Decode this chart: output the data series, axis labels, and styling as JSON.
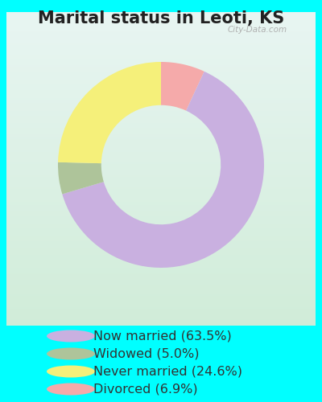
{
  "title": "Marital status in Leoti, KS",
  "slices": [
    63.5,
    5.0,
    24.6,
    6.9
  ],
  "labels": [
    "Now married (63.5%)",
    "Widowed (5.0%)",
    "Never married (24.6%)",
    "Divorced (6.9%)"
  ],
  "colors": [
    "#c9b0e0",
    "#aec49a",
    "#f5f07a",
    "#f5aaaa"
  ],
  "outer_bg": "#00ffff",
  "panel_bg_top": "#e8f5f2",
  "panel_bg_bottom": "#d8eedc",
  "title_fontsize": 15,
  "legend_fontsize": 11.5,
  "donut_width": 0.42,
  "watermark": "City-Data.com",
  "slice_order": [
    3,
    0,
    1,
    2
  ]
}
